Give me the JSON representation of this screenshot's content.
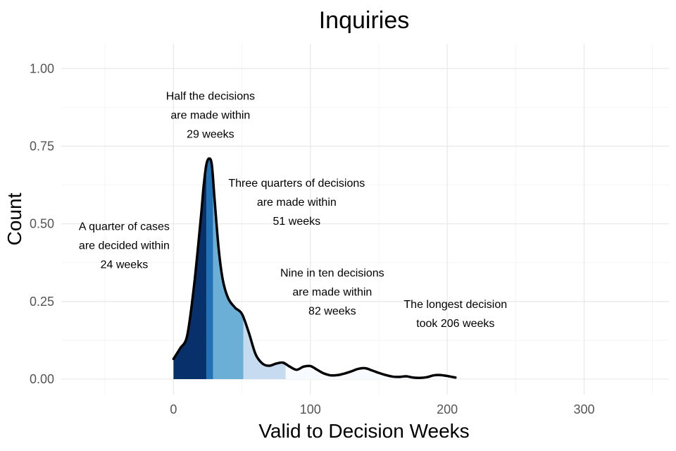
{
  "chart_data": {
    "type": "area",
    "title": "Inquiries",
    "xlabel": "Valid to Decision Weeks",
    "ylabel": "Count",
    "xlim": [
      -82,
      362
    ],
    "ylim": [
      -0.05,
      1.08
    ],
    "x_ticks": [
      0,
      100,
      200,
      300
    ],
    "x_tick_labels": [
      "0",
      "100",
      "200",
      "300"
    ],
    "x_minor_ticks": [
      -50,
      50,
      150,
      250,
      350
    ],
    "y_ticks": [
      0,
      0.25,
      0.5,
      0.75,
      1.0
    ],
    "y_tick_labels": [
      "0.00",
      "0.25",
      "0.50",
      "0.75",
      "1.00"
    ],
    "y_minor_ticks": [
      0.125,
      0.375,
      0.625,
      0.875
    ],
    "grid": true,
    "curve": {
      "x": [
        0,
        5,
        10,
        15,
        20,
        22,
        24,
        26,
        28,
        30,
        33,
        36,
        40,
        45,
        50,
        55,
        60,
        65,
        70,
        75,
        80,
        85,
        90,
        95,
        100,
        105,
        110,
        115,
        120,
        125,
        130,
        135,
        140,
        145,
        150,
        155,
        160,
        165,
        170,
        175,
        180,
        185,
        190,
        195,
        200,
        206
      ],
      "y": [
        0.065,
        0.1,
        0.14,
        0.3,
        0.52,
        0.62,
        0.69,
        0.71,
        0.69,
        0.58,
        0.42,
        0.32,
        0.26,
        0.23,
        0.21,
        0.15,
        0.08,
        0.05,
        0.043,
        0.05,
        0.053,
        0.04,
        0.03,
        0.04,
        0.042,
        0.03,
        0.018,
        0.012,
        0.013,
        0.018,
        0.025,
        0.033,
        0.035,
        0.028,
        0.02,
        0.013,
        0.008,
        0.007,
        0.009,
        0.005,
        0.004,
        0.006,
        0.012,
        0.013,
        0.01,
        0.005
      ]
    },
    "bands": [
      {
        "from": 0,
        "to": 24,
        "color": "#08306b"
      },
      {
        "from": 24,
        "to": 29,
        "color": "#2171b5"
      },
      {
        "from": 29,
        "to": 51,
        "color": "#6baed6"
      },
      {
        "from": 51,
        "to": 82,
        "color": "#c6dbef"
      },
      {
        "from": 82,
        "to": 206,
        "color": "#f7fbff"
      }
    ],
    "line_color": "#000000",
    "annotations": [
      {
        "x": -36,
        "y": 0.43,
        "lines": [
          "A quarter of cases",
          "are decided within",
          "24 weeks"
        ]
      },
      {
        "x": 27,
        "y": 0.85,
        "lines": [
          "Half the decisions",
          "are made within",
          "29 weeks"
        ]
      },
      {
        "x": 90,
        "y": 0.57,
        "lines": [
          "Three quarters of decisions",
          "are made within",
          "51 weeks"
        ]
      },
      {
        "x": 116,
        "y": 0.28,
        "lines": [
          "Nine in ten decisions",
          "are made within",
          "82 weeks"
        ]
      },
      {
        "x": 206,
        "y": 0.21,
        "lines": [
          "The longest decision",
          "took 206 weeks"
        ]
      }
    ]
  }
}
